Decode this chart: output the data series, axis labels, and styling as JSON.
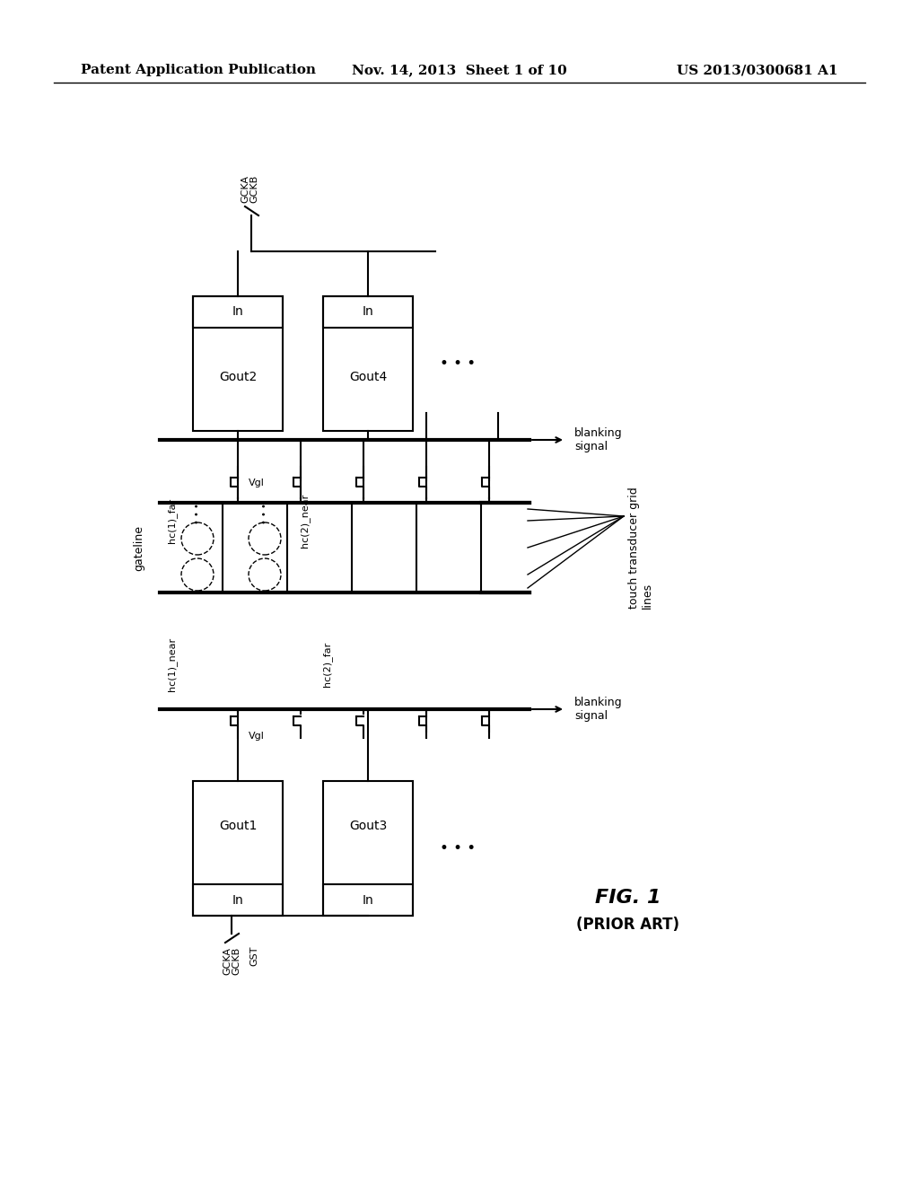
{
  "bg_color": "#ffffff",
  "text_color": "#000000",
  "header_left": "Patent Application Publication",
  "header_center": "Nov. 14, 2013  Sheet 1 of 10",
  "header_right": "US 2013/0300681 A1",
  "fig_label": "FIG. 1",
  "fig_sublabel": "(PRIOR ART)"
}
